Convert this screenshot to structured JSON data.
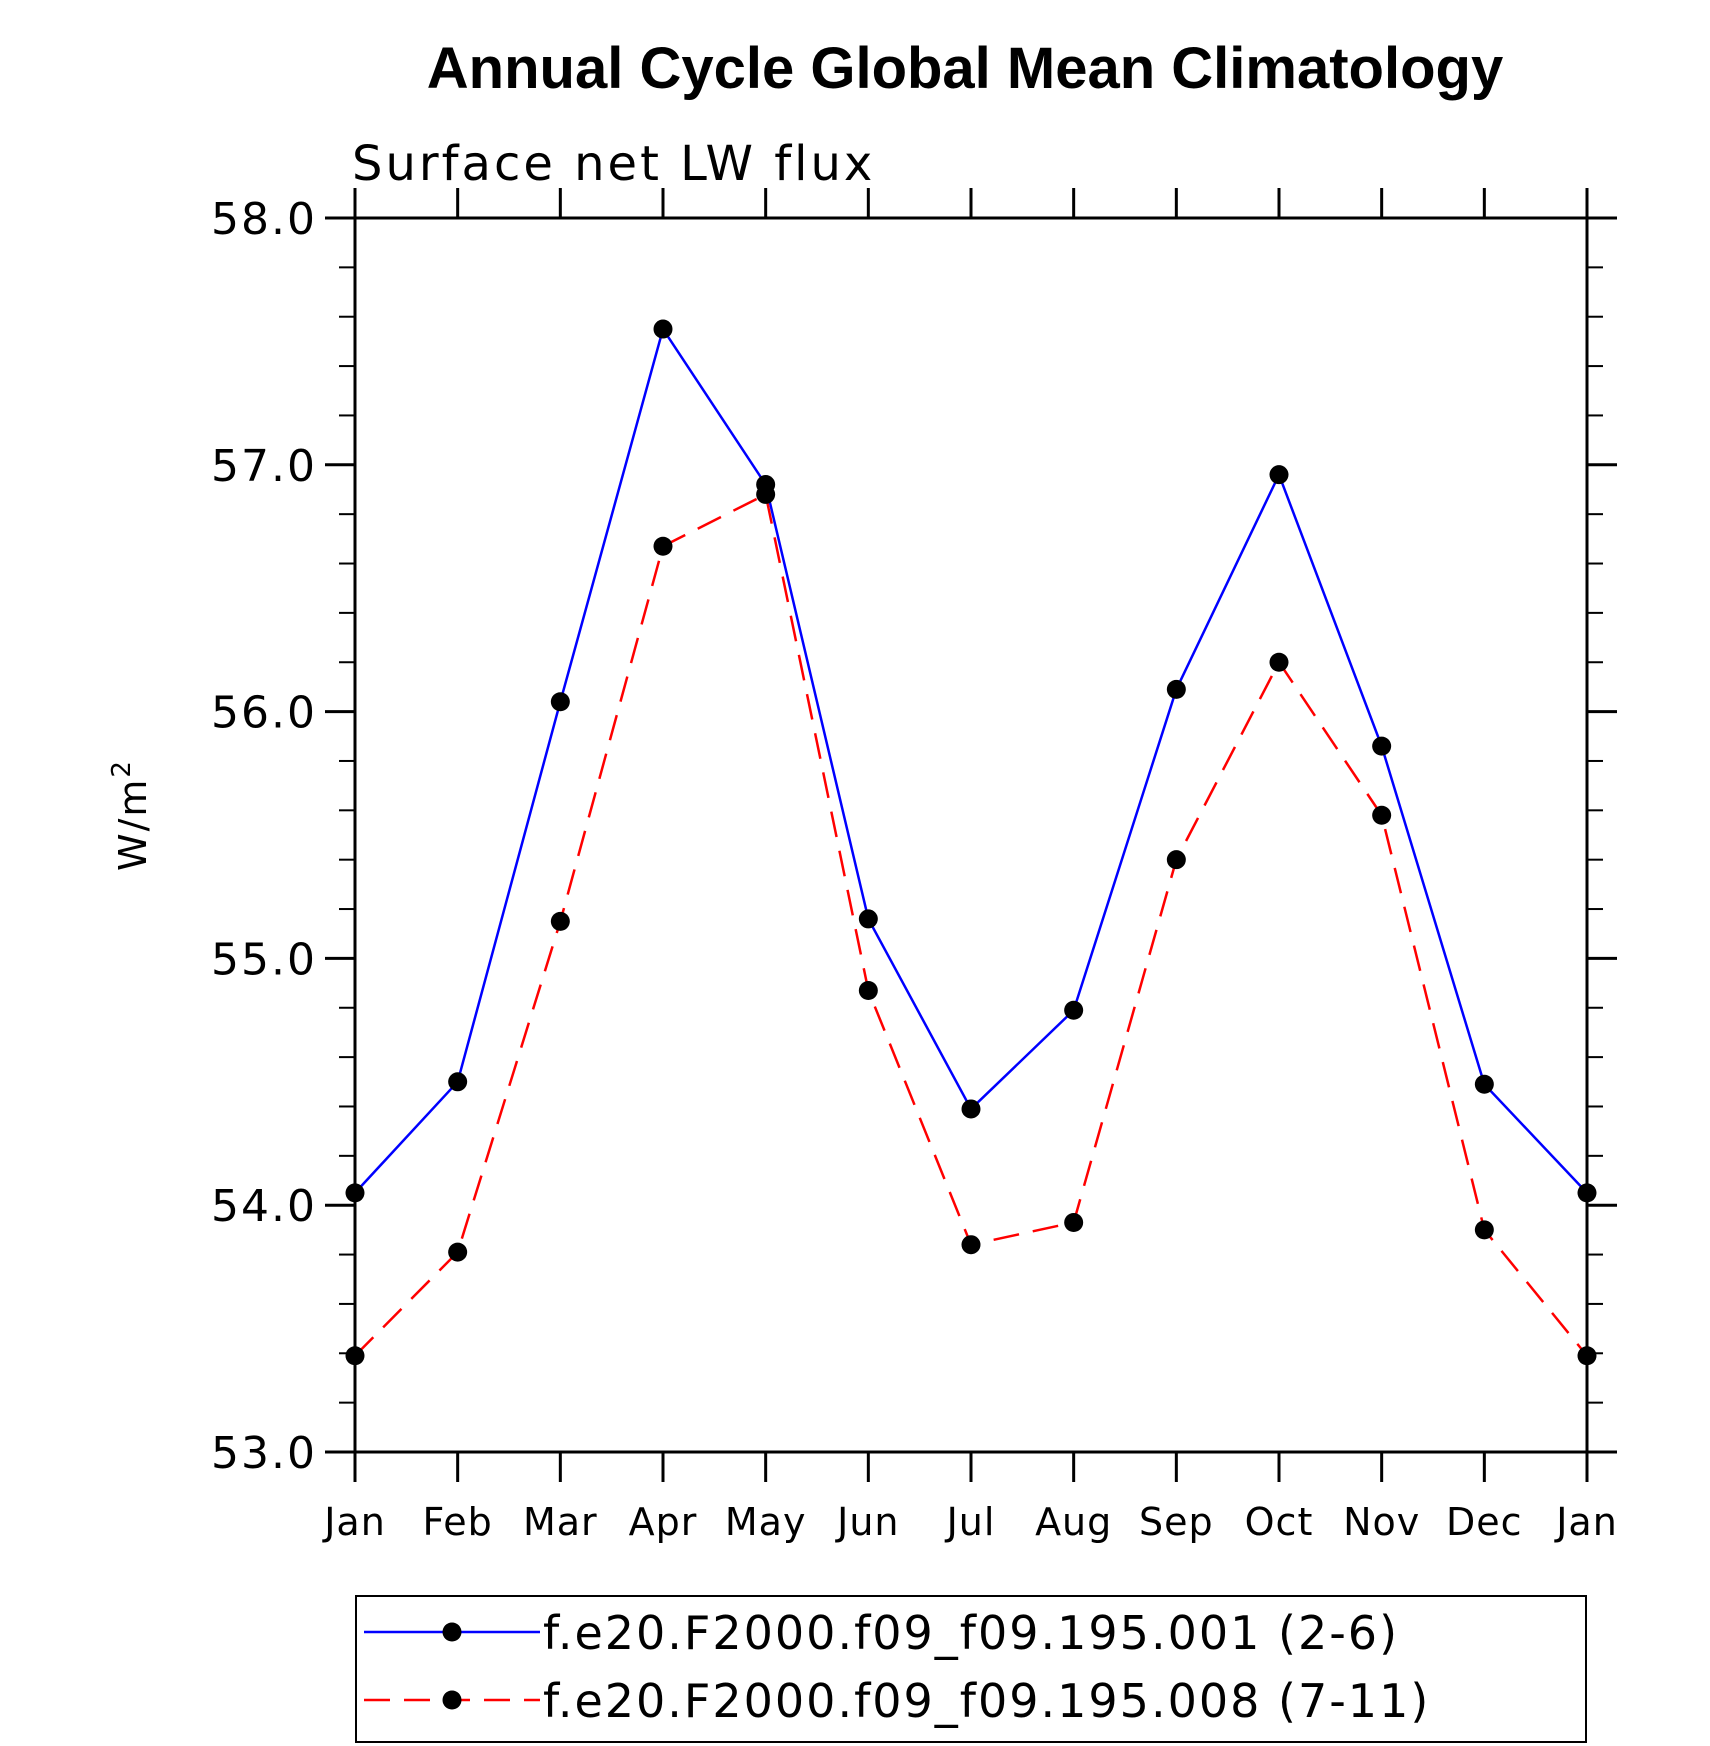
{
  "chart_data": {
    "type": "line",
    "title": "Annual Cycle Global Mean Climatology",
    "subtitle": "Surface net LW flux",
    "ylabel_base": "W/m",
    "ylabel_sup": "2",
    "xlabel": "",
    "categories": [
      "Jan",
      "Feb",
      "Mar",
      "Apr",
      "May",
      "Jun",
      "Jul",
      "Aug",
      "Sep",
      "Oct",
      "Nov",
      "Dec",
      "Jan"
    ],
    "ylim": [
      53.0,
      58.0
    ],
    "yticks": [
      "58.0",
      "57.0",
      "56.0",
      "55.0",
      "54.0",
      "53.0"
    ],
    "ytick_values": [
      58.0,
      57.0,
      56.0,
      55.0,
      54.0,
      53.0
    ],
    "minor_tick_step": 0.2,
    "series": [
      {
        "name": "f.e20.F2000.f09_f09.195.001 (2-6)",
        "color": "#0000ff",
        "style": "solid",
        "marker": "filled-circle",
        "values": [
          54.05,
          54.5,
          56.04,
          57.55,
          56.92,
          55.16,
          54.39,
          54.79,
          56.09,
          56.96,
          55.86,
          54.49,
          54.05
        ]
      },
      {
        "name": "f.e20.F2000.f09_f09.195.008 (7-11)",
        "color": "#ff0000",
        "style": "dashed",
        "marker": "filled-circle",
        "values": [
          53.39,
          53.81,
          55.15,
          56.67,
          56.88,
          54.87,
          53.84,
          53.93,
          55.4,
          56.2,
          55.58,
          53.9,
          53.39
        ]
      }
    ],
    "legend_position": "bottom"
  }
}
